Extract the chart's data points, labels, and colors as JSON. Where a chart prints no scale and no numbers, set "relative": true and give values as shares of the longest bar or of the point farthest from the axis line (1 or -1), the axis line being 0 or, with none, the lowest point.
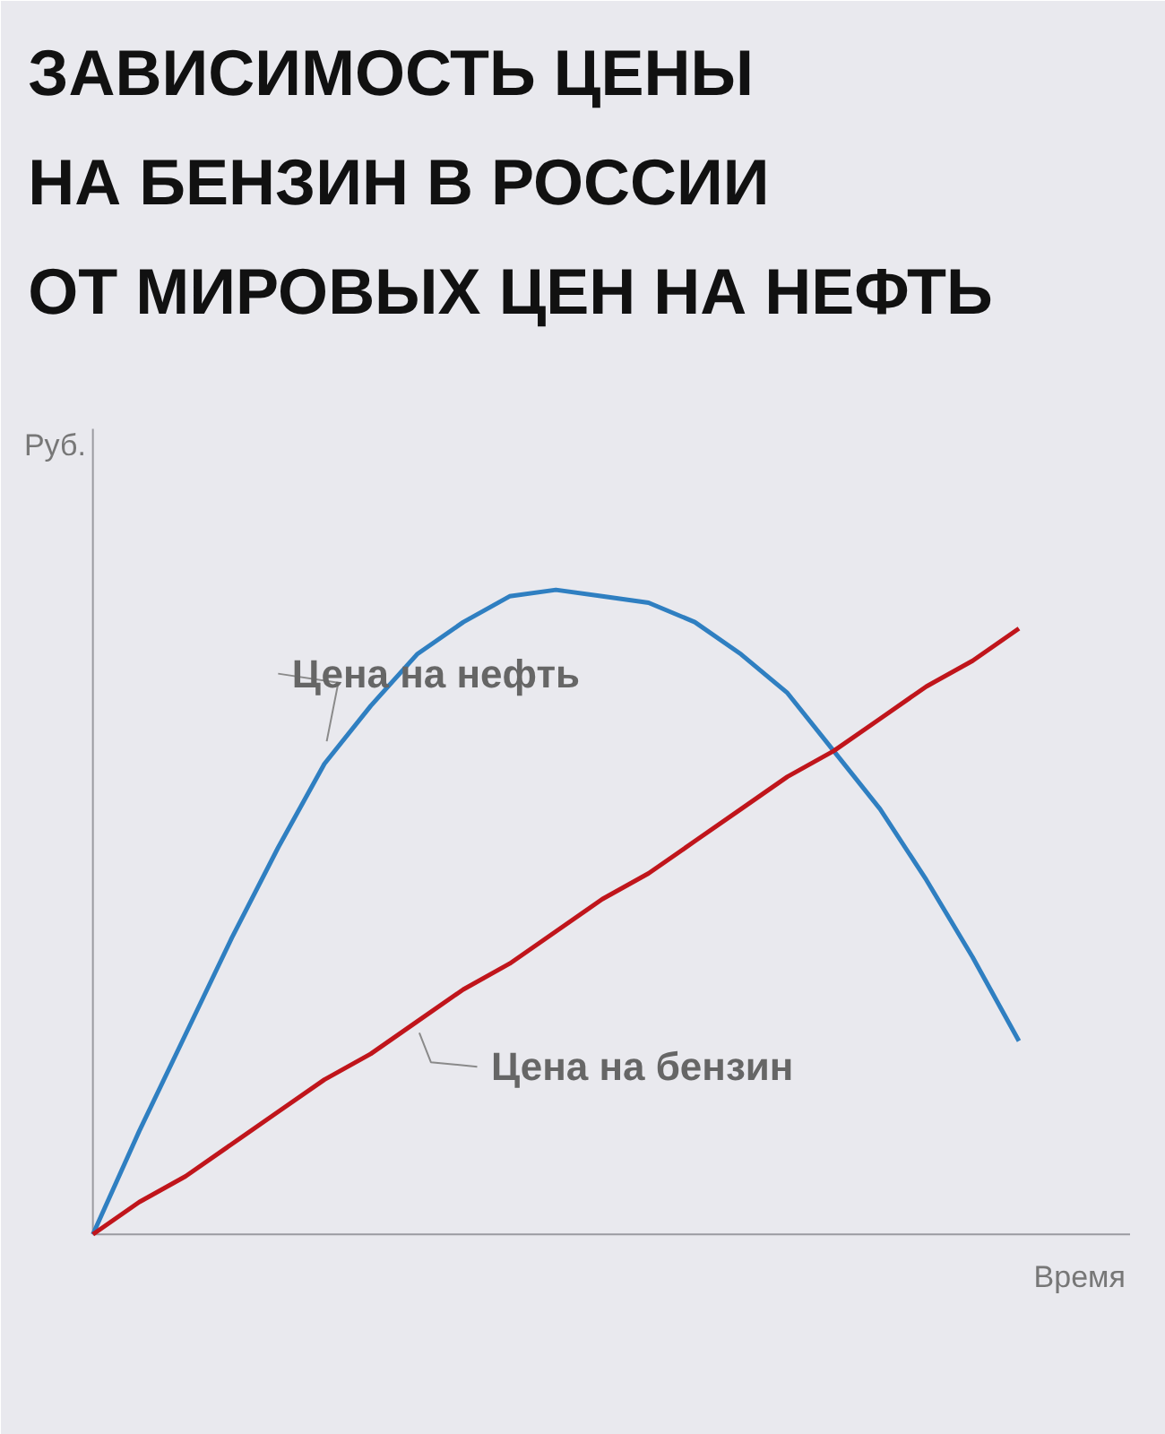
{
  "chart_data": {
    "type": "line",
    "title": "ЗАВИСИМОСТЬ ЦЕНЫ\nНА БЕНЗИН В РОССИИ\nОТ МИРОВЫХ ЦЕН НА НЕФТЬ",
    "xlabel": "Время",
    "ylabel": "Руб.",
    "relative": true,
    "grid": false,
    "legend": false,
    "categories": [
      null,
      null,
      null,
      null,
      null,
      null,
      null,
      null,
      null,
      null,
      null,
      null,
      null,
      null,
      null,
      null,
      null,
      null,
      null,
      null,
      null
    ],
    "series": [
      {
        "name": "Цена на нефть",
        "color": "#2f7fc1",
        "values": [
          0,
          0.16,
          0.31,
          0.46,
          0.6,
          0.73,
          0.82,
          0.9,
          0.95,
          0.99,
          1,
          0.99,
          0.98,
          0.95,
          0.9,
          0.84,
          0.75,
          0.66,
          0.55,
          0.43,
          0.3
        ]
      },
      {
        "name": "Цена на бензин",
        "color": "#c0151b",
        "values": [
          0,
          0.05,
          0.09,
          0.14,
          0.19,
          0.24,
          0.28,
          0.33,
          0.38,
          0.42,
          0.47,
          0.52,
          0.56,
          0.61,
          0.66,
          0.71,
          0.75,
          0.8,
          0.85,
          0.89,
          0.94
        ]
      }
    ]
  }
}
